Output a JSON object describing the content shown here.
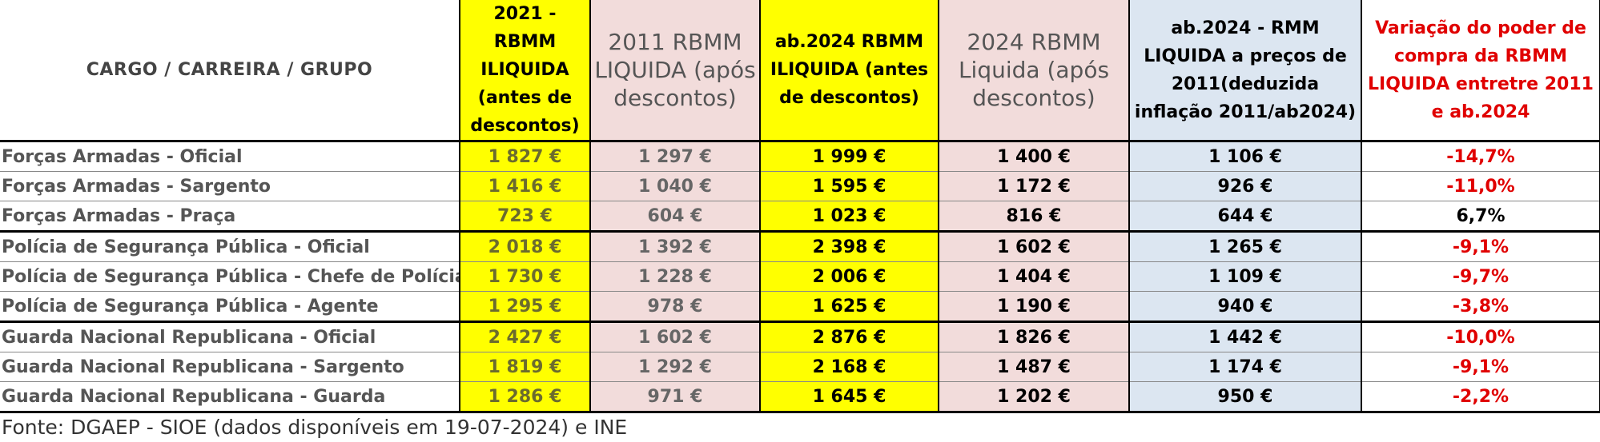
{
  "headers": {
    "cargo": "CARGO / CARREIRA / GRUPO",
    "c1": "2021 - RBMM ILIQUIDA (antes de descontos)",
    "c2": "2011 RBMM LIQUIDA (após descontos)",
    "c3": "ab.2024 RBMM ILIQUIDA (antes de descontos)",
    "c4": "2024 RBMM Liquida (após descontos)",
    "c5": "ab.2024 - RMM LIQUIDA a preços de 2011(deduzida inflação 2011/ab2024)",
    "c6": "Variação do poder de compra da RBMM LIQUIDA entretre 2011 e ab.2024"
  },
  "rows": [
    {
      "cargo": "Forças Armadas - Oficial",
      "c1": "1 827 €",
      "c2": "1 297 €",
      "c3": "1 999 €",
      "c4": "1 400 €",
      "c5": "1 106 €",
      "c6": "-14,7%"
    },
    {
      "cargo": "Forças Armadas - Sargento",
      "c1": "1 416 €",
      "c2": "1 040 €",
      "c3": "1 595 €",
      "c4": "1 172 €",
      "c5": "926 €",
      "c6": "-11,0%"
    },
    {
      "cargo": "Forças Armadas - Praça",
      "c1": "723 €",
      "c2": "604 €",
      "c3": "1 023 €",
      "c4": "816 €",
      "c5": "644 €",
      "c6": "6,7%"
    },
    {
      "cargo": "Polícia de Segurança Pública - Oficial",
      "c1": "2 018 €",
      "c2": "1 392 €",
      "c3": "2 398 €",
      "c4": "1 602 €",
      "c5": "1 265 €",
      "c6": "-9,1%"
    },
    {
      "cargo": "Polícia de Segurança Pública - Chefe de Polícia",
      "c1": "1 730 €",
      "c2": "1 228 €",
      "c3": "2 006 €",
      "c4": "1 404 €",
      "c5": "1 109 €",
      "c6": "-9,7%"
    },
    {
      "cargo": "Polícia de Segurança Pública - Agente",
      "c1": "1 295 €",
      "c2": "978 €",
      "c3": "1 625 €",
      "c4": "1 190 €",
      "c5": "940 €",
      "c6": "-3,8%"
    },
    {
      "cargo": "Guarda Nacional Republicana - Oficial",
      "c1": "2 427 €",
      "c2": "1 602 €",
      "c3": "2 876 €",
      "c4": "1 826 €",
      "c5": "1 442 €",
      "c6": "-10,0%"
    },
    {
      "cargo": "Guarda Nacional Republicana - Sargento",
      "c1": "1 819 €",
      "c2": "1 292 €",
      "c3": "2 168 €",
      "c4": "1 487 €",
      "c5": "1 174 €",
      "c6": "-9,1%"
    },
    {
      "cargo": "Guarda Nacional Republicana - Guarda",
      "c1": "1 286 €",
      "c2": "971 €",
      "c3": "1 645 €",
      "c4": "1 202 €",
      "c5": "950 €",
      "c6": "-2,2%"
    }
  ],
  "source": "Fonte: DGAEP - SIOE (dados disponíveis em 19-07-2024) e INE",
  "colors": {
    "yellow": "#ffff00",
    "pink": "#f2dcdb",
    "blue": "#dce6f1",
    "negative": "#e00000"
  }
}
